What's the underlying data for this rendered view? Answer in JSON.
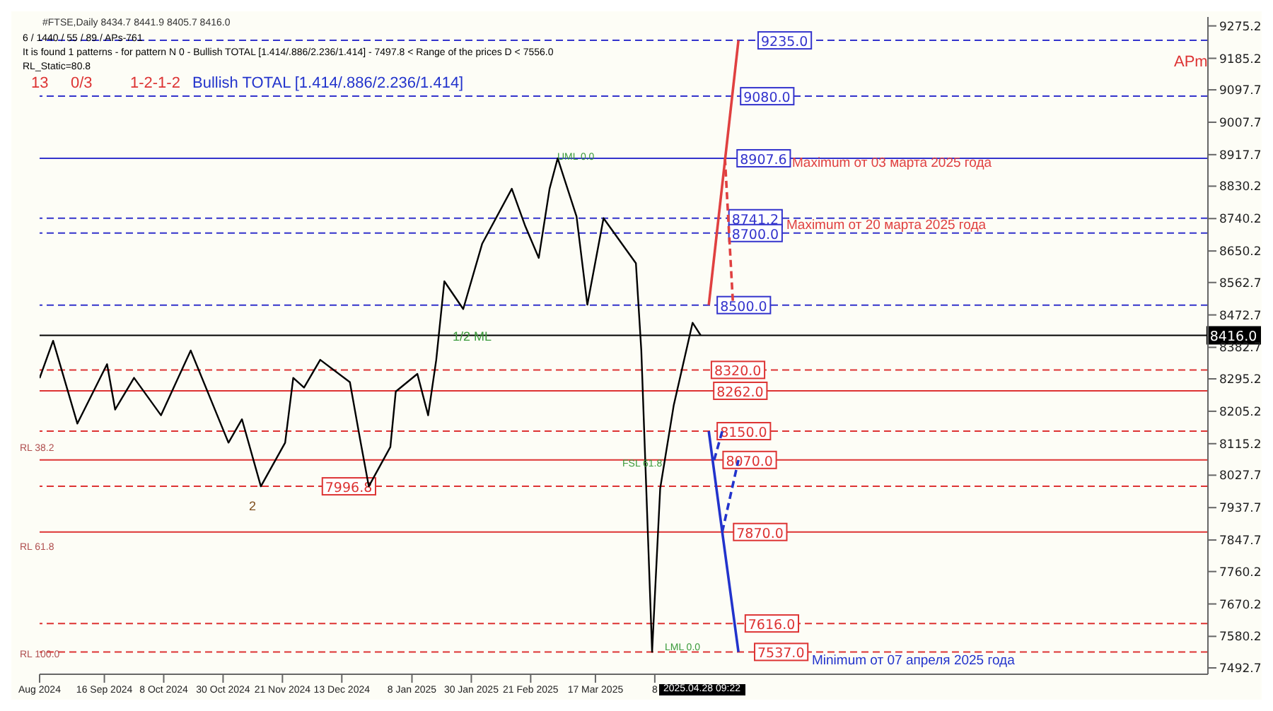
{
  "chart_data": {
    "type": "line",
    "xlim": [
      "2024-08-23",
      "2025-10-30"
    ],
    "xticks": [
      {
        "value": "2024-08-23",
        "label": "Aug 2024"
      },
      {
        "value": "2024-09-16",
        "label": "16 Sep 2024"
      },
      {
        "value": "2024-10-08",
        "label": "8 Oct 2024"
      },
      {
        "value": "2024-10-30",
        "label": "30 Oct 2024"
      },
      {
        "value": "2024-11-21",
        "label": "21 Nov 2024"
      },
      {
        "value": "2024-12-13",
        "label": "13 Dec 2024"
      },
      {
        "value": "2025-01-08",
        "label": "8 Jan 2025"
      },
      {
        "value": "2025-01-30",
        "label": "30 Jan 2025"
      },
      {
        "value": "2025-02-21",
        "label": "21 Feb 2025"
      },
      {
        "value": "2025-03-17",
        "label": "17 Mar 2025"
      },
      {
        "value": "2025-04-08",
        "label": "8"
      }
    ],
    "ylim": [
      7475,
      9300
    ],
    "yticks": [
      9275.2,
      9185.2,
      9097.7,
      9007.7,
      8917.7,
      8830.2,
      8740.2,
      8650.2,
      8562.7,
      8472.7,
      8382.7,
      8295.2,
      8205.2,
      8115.2,
      8027.7,
      7937.7,
      7847.7,
      7760.2,
      7670.2,
      7580.2,
      7492.7
    ],
    "series": [
      {
        "color": "#000000",
        "x": [
          "2024-08-23",
          "2024-08-28",
          "2024-09-06",
          "2024-09-17",
          "2024-09-20",
          "2024-09-27",
          "2024-10-07",
          "2024-10-18",
          "2024-11-01",
          "2024-11-06",
          "2024-11-13",
          "2024-11-22",
          "2024-11-25",
          "2024-11-29",
          "2024-12-05",
          "2024-12-16",
          "2024-12-20",
          "2024-12-23",
          "2024-12-31",
          "2025-01-02",
          "2025-01-10",
          "2025-01-14",
          "2025-01-17",
          "2025-01-20",
          "2025-01-27",
          "2025-02-03",
          "2025-02-14",
          "2025-02-19",
          "2025-02-24",
          "2025-02-28",
          "2025-03-03",
          "2025-03-10",
          "2025-03-14",
          "2025-03-20",
          "2025-04-01",
          "2025-04-03",
          "2025-04-07",
          "2025-04-10",
          "2025-04-15",
          "2025-04-22",
          "2025-04-25"
        ],
        "values": [
          8297,
          8401,
          8171,
          8336,
          8210,
          8298,
          8194,
          8374,
          8118,
          8183,
          7996.8,
          8118,
          8298,
          8271,
          8348,
          8286,
          8118,
          7996.8,
          8106,
          8260,
          8309,
          8194,
          8348,
          8566,
          8489,
          8670,
          8823,
          8719,
          8631,
          8823,
          8907.6,
          8746,
          8501,
          8741.2,
          8616,
          8374,
          7537,
          7991,
          8221,
          8451,
          8416
        ]
      },
      {
        "color": "#e04040",
        "x": [
          "2025-04-28",
          "2025-05-09"
        ],
        "values": [
          8500,
          9235
        ]
      },
      {
        "color": "#e04040",
        "line_style": "dashed",
        "x": [
          "2025-05-04",
          "2025-05-07"
        ],
        "values": [
          8907.6,
          8500
        ]
      },
      {
        "color": "#2233cc",
        "x": [
          "2025-04-28",
          "2025-05-03",
          "2025-05-09"
        ],
        "values": [
          8150,
          7870,
          7537
        ]
      },
      {
        "color": "#2233cc",
        "line_style": "dashed",
        "x": [
          "2025-04-30",
          "2025-05-03"
        ],
        "values": [
          8070,
          8150
        ]
      },
      {
        "color": "#2233cc",
        "line_style": "dashed",
        "x": [
          "2025-05-03",
          "2025-05-09"
        ],
        "values": [
          7870,
          8070
        ]
      }
    ],
    "ref_lines": [
      {
        "axis": "y",
        "value": 9235.0,
        "label": "9235.0",
        "color": "#3333cc",
        "line_style": "dashed"
      },
      {
        "axis": "y",
        "value": 9080.0,
        "label": "9080.0",
        "color": "#3333cc",
        "line_style": "dashed"
      },
      {
        "axis": "y",
        "value": 8907.6,
        "label": "8907.6",
        "color": "#3333cc",
        "line_style": "solid"
      },
      {
        "axis": "y",
        "value": 8741.2,
        "label": "8741.2",
        "color": "#3333cc",
        "line_style": "dashed"
      },
      {
        "axis": "y",
        "value": 8700.0,
        "label": "8700.0",
        "color": "#3333cc",
        "line_style": "dashed"
      },
      {
        "axis": "y",
        "value": 8500.0,
        "label": "8500.0",
        "color": "#3333cc",
        "line_style": "dashed"
      },
      {
        "axis": "y",
        "value": 8320.0,
        "label": "8320.0",
        "color": "#dd3333",
        "line_style": "dashed"
      },
      {
        "axis": "y",
        "value": 8262.0,
        "label": "8262.0",
        "color": "#dd3333",
        "line_style": "solid"
      },
      {
        "axis": "y",
        "value": 8150.0,
        "label": "8150.0",
        "color": "#dd3333",
        "line_style": "dashed"
      },
      {
        "axis": "y",
        "value": 8070.0,
        "label": "8070.0",
        "color": "#dd3333",
        "line_style": "solid"
      },
      {
        "axis": "y",
        "value": 7870.0,
        "label": "7870.0",
        "color": "#dd3333",
        "line_style": "solid"
      },
      {
        "axis": "y",
        "value": 7616.0,
        "label": "7616.0",
        "color": "#dd3333",
        "line_style": "dashed"
      },
      {
        "axis": "y",
        "value": 7537.0,
        "label": "7537.0",
        "color": "#dd3333",
        "line_style": "dashed"
      },
      {
        "axis": "y",
        "value": 7996.8,
        "label": "7996.8",
        "color": "#dd3333",
        "line_style": "dashed"
      },
      {
        "axis": "y",
        "value": 8416.0,
        "label": "8416.0",
        "color": "#000000",
        "line_style": "solid"
      }
    ],
    "annotations": [
      "#FTSE,Daily  8434.7 8441.9 8405.7 8416.0",
      "6 / 1440 / 55 / 89 / APs-761",
      "It is found 1 patterns  -  for pattern N 0 - Bullish TOTAL [1.414/.886/2.236/1.414] - 7497.8 < Range of the prices D < 7556.0",
      "RL_Static=80.8",
      "13",
      "0/3",
      "1-2-1-2",
      "Bullish TOTAL [1.414/.886/2.236/1.414]",
      "APm",
      "2025.04.28 09:22",
      "1/2 ML",
      "UML 0.0",
      "LML 0.0",
      "RL 38.2",
      "RL 61.8",
      "RL 100.0",
      "FSL 61.8",
      "2",
      "Maximum от 03 марта 2025 года",
      "Maximum от 20 марта 2025 года",
      "Minimum от 07 апреля 2025 года"
    ]
  }
}
